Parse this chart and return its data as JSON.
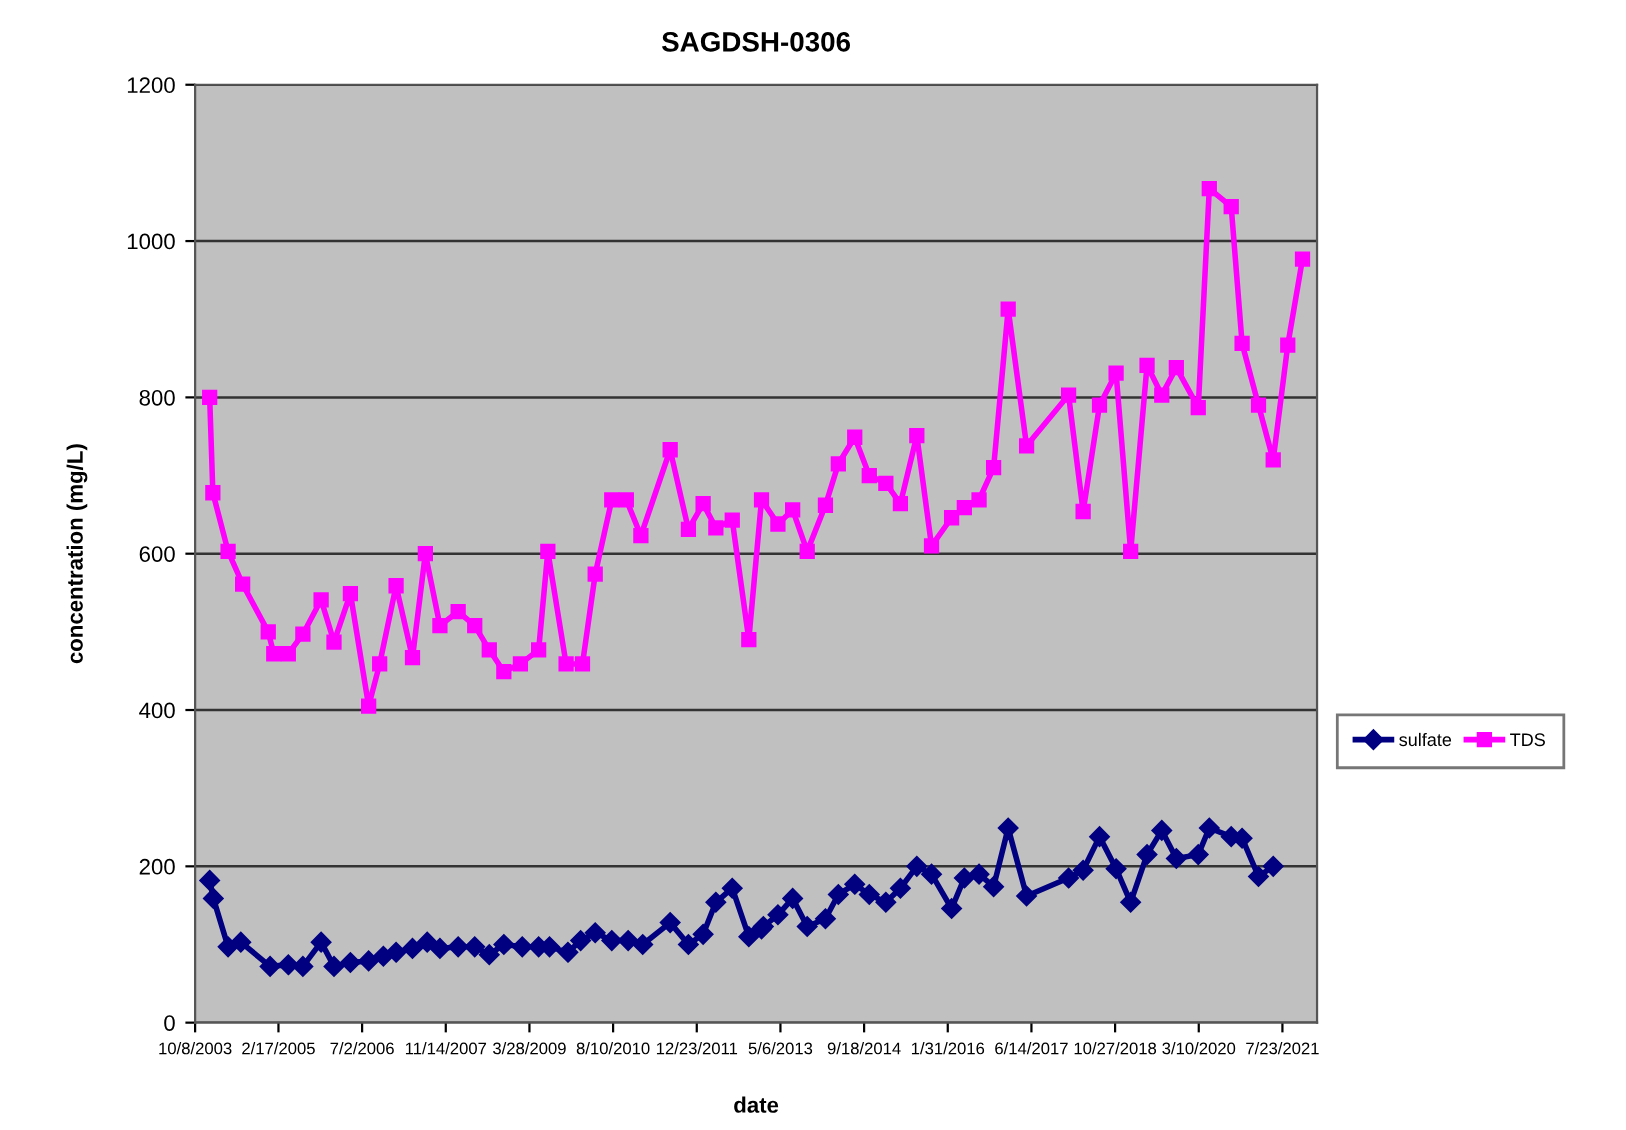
{
  "chart_data": {
    "type": "line",
    "title": "SAGDSH-0306",
    "xlabel": "date",
    "ylabel": "concentration (mg/L)",
    "xlim": [
      "2003-10-08",
      "2022-02-15"
    ],
    "xticks": [
      {
        "value": "2003-10-08",
        "label": "10/8/2003"
      },
      {
        "value": "2005-02-17",
        "label": "2/17/2005"
      },
      {
        "value": "2006-07-02",
        "label": "7/2/2006"
      },
      {
        "value": "2007-11-14",
        "label": "11/14/2007"
      },
      {
        "value": "2009-03-28",
        "label": "3/28/2009"
      },
      {
        "value": "2010-08-10",
        "label": "8/10/2010"
      },
      {
        "value": "2011-12-23",
        "label": "12/23/2011"
      },
      {
        "value": "2013-05-06",
        "label": "5/6/2013"
      },
      {
        "value": "2014-09-18",
        "label": "9/18/2014"
      },
      {
        "value": "2016-01-31",
        "label": "1/31/2016"
      },
      {
        "value": "2017-06-14",
        "label": "6/14/2017"
      },
      {
        "value": "2018-10-27",
        "label": "10/27/2018"
      },
      {
        "value": "2020-03-10",
        "label": "3/10/2020"
      },
      {
        "value": "2021-07-23",
        "label": "7/23/2021"
      }
    ],
    "ylim": [
      0,
      1200
    ],
    "yticks": [
      0,
      200,
      400,
      600,
      800,
      1000,
      1200
    ],
    "grid": "y",
    "legend": "right",
    "series": [
      {
        "name": "sulfate",
        "color": "#000080",
        "marker": "diamond",
        "x": [
          "2004-01-03",
          "2004-01-25",
          "2004-04-22",
          "2004-07-07",
          "2004-12-29",
          "2005-04-17",
          "2005-07-13",
          "2005-10-30",
          "2006-01-15",
          "2006-04-23",
          "2006-08-10",
          "2006-11-06",
          "2007-01-21",
          "2007-04-29",
          "2007-07-26",
          "2007-10-10",
          "2008-01-27",
          "2008-05-05",
          "2008-07-31",
          "2008-10-26",
          "2009-02-13",
          "2009-05-22",
          "2009-07-26",
          "2009-11-13",
          "2010-01-28",
          "2010-04-25",
          "2010-08-02",
          "2010-11-08",
          "2011-02-03",
          "2011-07-17",
          "2011-11-03",
          "2012-01-30",
          "2012-04-15",
          "2012-07-22",
          "2012-10-29",
          "2013-01-13",
          "2013-01-24",
          "2013-04-21",
          "2013-07-18",
          "2013-10-13",
          "2014-01-30",
          "2014-04-17",
          "2014-07-24",
          "2014-10-19",
          "2015-01-26",
          "2015-04-23",
          "2015-07-30",
          "2015-10-26",
          "2016-02-23",
          "2016-05-09",
          "2016-08-05",
          "2016-10-31",
          "2017-01-26",
          "2017-05-16",
          "2018-01-22",
          "2018-04-19",
          "2018-07-26",
          "2018-11-02",
          "2019-01-28",
          "2019-05-06",
          "2019-08-02",
          "2019-10-28",
          "2020-03-07",
          "2020-05-12",
          "2020-09-20",
          "2020-11-24",
          "2021-03-02",
          "2021-05-29"
        ],
        "values": [
          182,
          159,
          97,
          103,
          72,
          74,
          72,
          103,
          72,
          77,
          79,
          85,
          90,
          95,
          103,
          95,
          97,
          97,
          87,
          100,
          97,
          97,
          97,
          90,
          105,
          115,
          105,
          105,
          100,
          128,
          100,
          113,
          154,
          172,
          110,
          120,
          123,
          138,
          159,
          123,
          133,
          164,
          177,
          164,
          154,
          172,
          200,
          190,
          146,
          185,
          190,
          174,
          249,
          162,
          185,
          195,
          238,
          197,
          154,
          215,
          246,
          210,
          215,
          249,
          238,
          236,
          187,
          200
        ]
      },
      {
        "name": "TDS",
        "color": "#ff00ff",
        "marker": "square",
        "x": [
          "2004-01-03",
          "2004-01-22",
          "2004-04-22",
          "2004-07-18",
          "2004-12-18",
          "2005-01-20",
          "2005-04-17",
          "2005-07-13",
          "2005-10-30",
          "2006-01-15",
          "2006-04-23",
          "2006-08-10",
          "2006-10-15",
          "2007-01-21",
          "2007-04-29",
          "2007-07-15",
          "2007-10-10",
          "2008-01-27",
          "2008-05-05",
          "2008-07-31",
          "2008-10-26",
          "2009-02-02",
          "2009-05-22",
          "2009-07-16",
          "2009-11-02",
          "2010-02-08",
          "2010-04-25",
          "2010-08-02",
          "2010-10-28",
          "2011-01-23",
          "2011-07-17",
          "2011-11-03",
          "2012-01-30",
          "2012-04-15",
          "2012-07-22",
          "2012-10-29",
          "2013-01-13",
          "2013-04-21",
          "2013-07-18",
          "2013-10-13",
          "2014-01-30",
          "2014-04-17",
          "2014-07-24",
          "2014-10-19",
          "2015-01-26",
          "2015-04-23",
          "2015-07-30",
          "2015-10-26",
          "2016-02-23",
          "2016-05-09",
          "2016-08-05",
          "2016-10-31",
          "2017-01-26",
          "2017-05-16",
          "2018-01-22",
          "2018-04-19",
          "2018-07-26",
          "2018-11-02",
          "2019-01-28",
          "2019-05-06",
          "2019-08-02",
          "2019-10-28",
          "2020-03-07",
          "2020-05-12",
          "2020-09-20",
          "2020-11-24",
          "2021-03-02",
          "2021-05-29",
          "2021-08-24",
          "2021-11-20"
        ],
        "values": [
          800,
          678,
          603,
          561,
          500,
          472,
          472,
          497,
          541,
          487,
          549,
          405,
          459,
          559,
          467,
          600,
          508,
          526,
          508,
          477,
          449,
          459,
          477,
          603,
          459,
          459,
          574,
          669,
          669,
          623,
          733,
          631,
          664,
          633,
          643,
          490,
          669,
          638,
          656,
          603,
          662,
          715,
          749,
          700,
          690,
          664,
          751,
          610,
          646,
          659,
          669,
          710,
          913,
          738,
          803,
          654,
          790,
          831,
          603,
          841,
          803,
          838,
          787,
          1067,
          1044,
          869,
          790,
          720,
          867,
          977
        ]
      }
    ]
  }
}
